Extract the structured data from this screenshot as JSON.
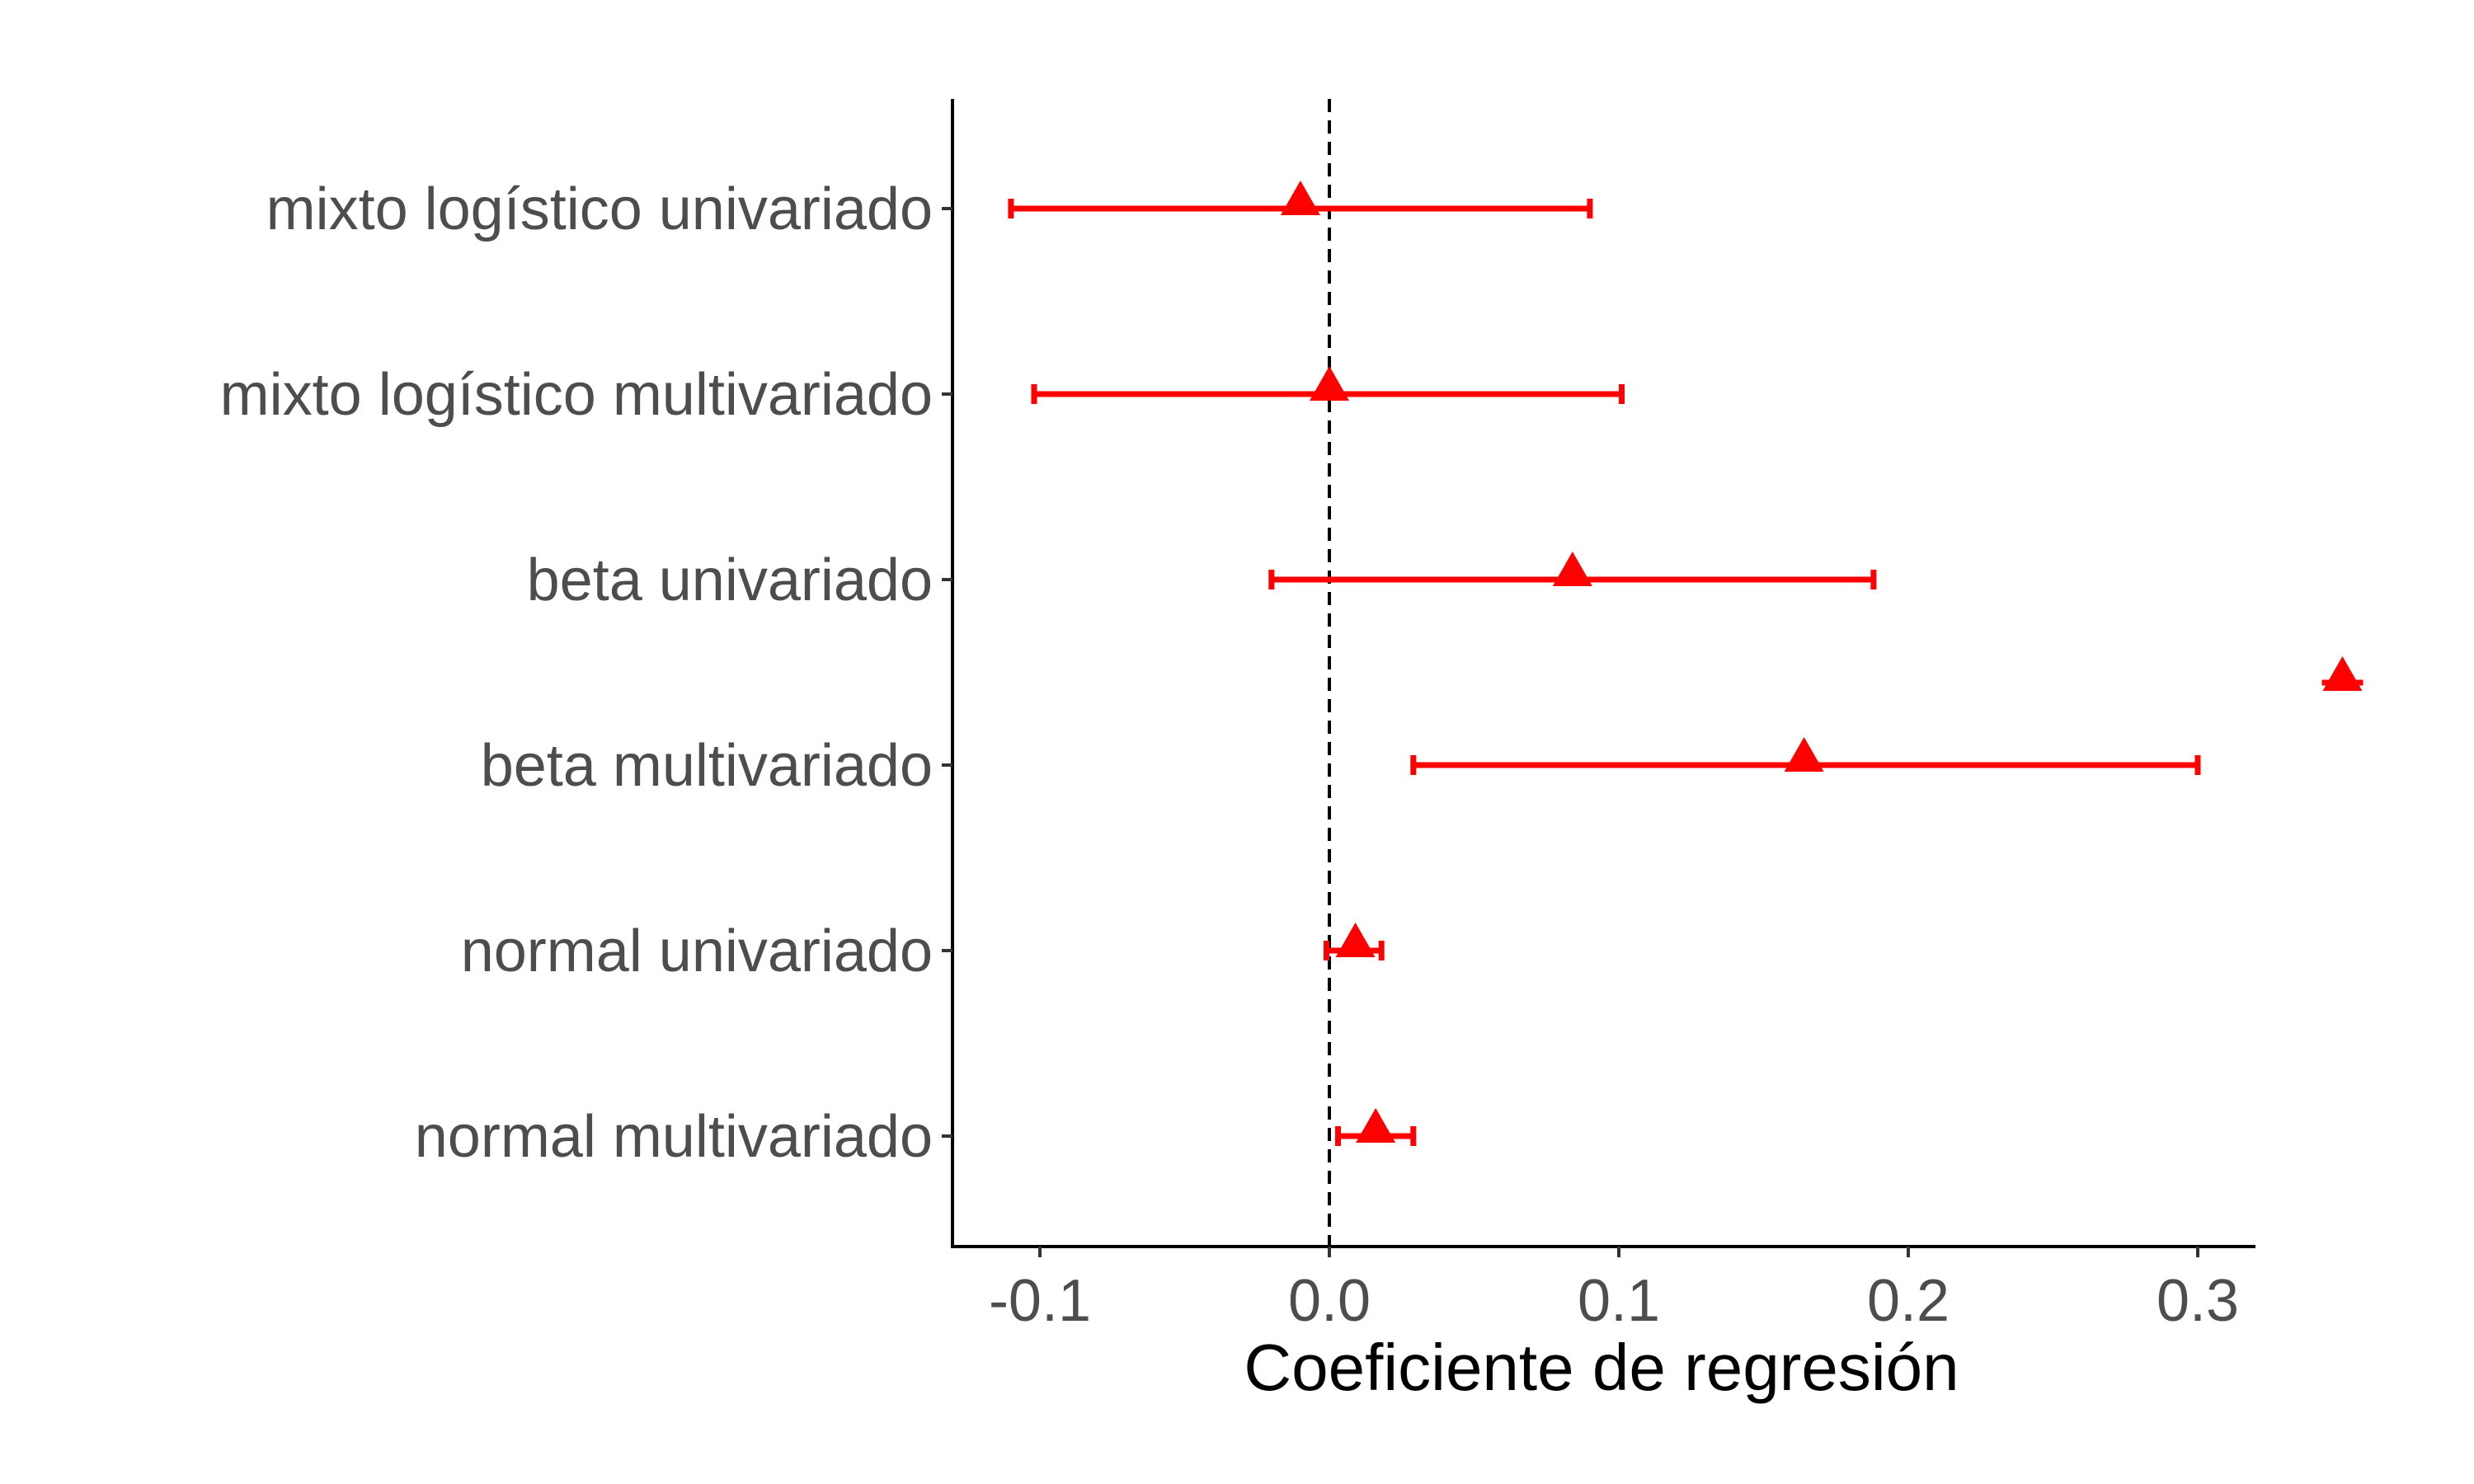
{
  "chart_data": {
    "type": "scatter",
    "xlabel": "Coeficiente de regresión",
    "ylabel": "",
    "xlim": [
      -0.13,
      0.32
    ],
    "x_ticks": [
      {
        "value": -0.1,
        "label": "-0.1"
      },
      {
        "value": 0.0,
        "label": "0.0"
      },
      {
        "value": 0.1,
        "label": "0.1"
      },
      {
        "value": 0.2,
        "label": "0.2"
      },
      {
        "value": 0.3,
        "label": "0.3"
      }
    ],
    "reference_line": 0.0,
    "grid": false,
    "marker": "triangle",
    "color": "#ff0000",
    "categories": [
      "mixto logístico univariado",
      "mixto logístico multivariado",
      "beta univariado",
      "beta multivariado",
      "normal univariado",
      "normal multivariado"
    ],
    "estimates": [
      -0.01,
      0.0,
      0.084,
      0.164,
      0.009,
      0.016
    ],
    "lower": [
      -0.11,
      -0.102,
      -0.02,
      0.029,
      -0.001,
      0.003
    ],
    "upper": [
      0.09,
      0.101,
      0.188,
      0.3,
      0.018,
      0.029
    ],
    "outlier": {
      "category": "beta multivariado",
      "value": 0.35
    }
  }
}
